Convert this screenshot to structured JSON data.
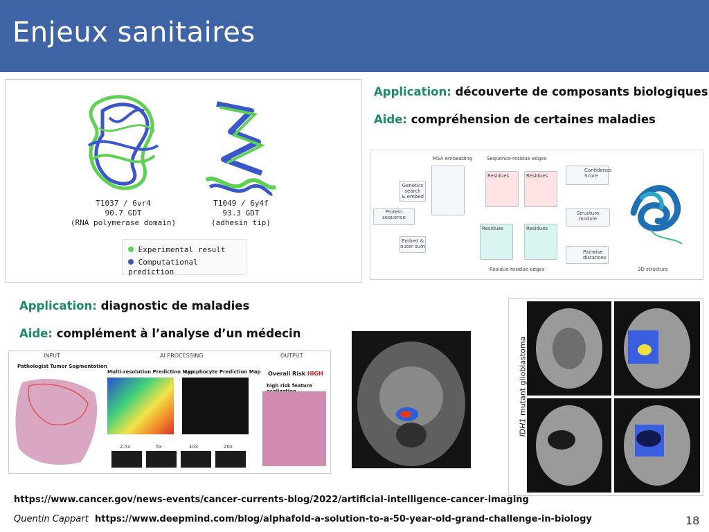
{
  "slide": {
    "title": "Enjeux sanitaires",
    "page_number": "18",
    "author": "Quentin Cappart"
  },
  "top_right": {
    "application_key": "Application:",
    "application_text": "découverte de composants biologiques",
    "aide_key": "Aide:",
    "aide_text": "compréhension de certaines maladies"
  },
  "middle_left": {
    "application_key": "Application:",
    "application_text": "diagnostic de maladies",
    "aide_key": "Aide:",
    "aide_text": "complément à l’analyse d’un médecin"
  },
  "protein_figure": {
    "left_caption": [
      "T1037 / 6vr4",
      "90.7 GDT",
      "(RNA polymerase domain)"
    ],
    "right_caption": [
      "T1049 / 6y4f",
      "93.3 GDT",
      "(adhesin tip)"
    ],
    "legend": [
      "Experimental result",
      "Computational prediction"
    ],
    "colors": {
      "experimental": "#5ed155",
      "computational": "#3a56c9"
    }
  },
  "alphafold_diagram": {
    "msa_embedding": "MSA embedding",
    "sequence_residue_edges": "Sequence-residue edges",
    "genetics": [
      "Genetics",
      "search",
      "& embed"
    ],
    "protein_sequence": "Protein sequence",
    "embed_outer": [
      "Embed &",
      "outer sum"
    ],
    "residues": "Residues",
    "confidence": [
      "Confidence",
      "Score"
    ],
    "structure_module": [
      "Structure",
      "module"
    ],
    "pairwise": [
      "Pairwise",
      "distances"
    ],
    "residue_residue_edges": "Residue-residue edges",
    "structure_3d": "3D structure"
  },
  "pathology_figure": {
    "input_header": "INPUT",
    "ai_header": "AI PROCESSING",
    "output_header": "OUTPUT",
    "tumor_seg": "Pathologist Tumor Segmentation",
    "multi_res": "Multi-resolution Prediction Map",
    "lymph": "Lymphocyte Prediction Map",
    "overall_risk": "Overall Risk",
    "risk_value": "HIGH",
    "high_risk": "high risk feature ocalization",
    "scales": [
      "2.5x",
      "5x",
      "10x",
      "20x"
    ]
  },
  "glioblastoma": {
    "label_italic": "IDH1",
    "label_rest": " mutant glioblastoma"
  },
  "links": {
    "cancer_url": "https://www.cancer.gov/news-events/cancer-currents-blog/2022/artificial-intelligence-cancer-imaging",
    "deepmind_url": "https://www.deepmind.com/blog/alphafold-a-solution-to-a-50-year-old-grand-challenge-in-biology"
  }
}
